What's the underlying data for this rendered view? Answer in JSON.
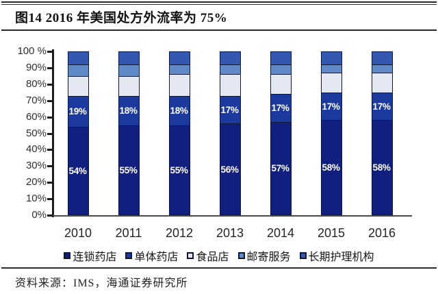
{
  "title": {
    "text": "图14 2016 年美国处方外流率为 75%"
  },
  "source": {
    "label": "资料来源：IMS，海通证券研究所"
  },
  "colors": {
    "chain_drugstore": "#111f7e",
    "single_drugstore": "#1c3a9e",
    "food_store": "#e3e8f3",
    "mail_service": "#6089c8",
    "long_term_care": "#3457b2",
    "segment_border": "#101735",
    "axis": "#1c1c1c"
  },
  "chart_data": {
    "type": "bar",
    "stacked": true,
    "grid": false,
    "legend_position": "bottom",
    "title": "图14 2016 年美国处方外流率为 75%",
    "xlabel": "",
    "ylabel": "",
    "ylim": [
      0,
      100
    ],
    "y_tick_labels": [
      "0%",
      "10%",
      "20%",
      "30%",
      "40%",
      "50%",
      "60%",
      "70%",
      "80%",
      "90%",
      "100 %"
    ],
    "categories": [
      "2010",
      "2011",
      "2012",
      "2013",
      "2014",
      "2015",
      "2016"
    ],
    "series": [
      {
        "name": "连锁药店",
        "color": "#111f7e",
        "show_labels": true,
        "values": [
          54,
          55,
          55,
          56,
          57,
          58,
          58
        ]
      },
      {
        "name": "单体药店",
        "color": "#1c3a9e",
        "show_labels": true,
        "values": [
          19,
          18,
          18,
          17,
          17,
          17,
          17
        ]
      },
      {
        "name": "食品店",
        "color": "#e3e8f3",
        "show_labels": false,
        "values": [
          12,
          12,
          13,
          13,
          12,
          12,
          12
        ]
      },
      {
        "name": "邮寄服务",
        "color": "#6089c8",
        "show_labels": false,
        "values": [
          7,
          7,
          6,
          6,
          6,
          5,
          5
        ]
      },
      {
        "name": "长期护理机构",
        "color": "#3457b2",
        "show_labels": false,
        "values": [
          8,
          8,
          8,
          8,
          8,
          8,
          8
        ]
      }
    ]
  }
}
